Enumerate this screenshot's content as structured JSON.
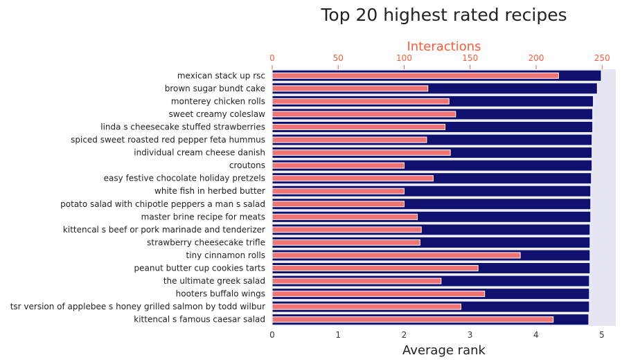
{
  "chart_data": {
    "type": "bar",
    "title": "Top 20 highest rated recipes",
    "xlabel": "Average rank",
    "x2label": "Interactions",
    "xlim": [
      0,
      5.25
    ],
    "x2lim": [
      0,
      262
    ],
    "xticks": [
      0,
      1,
      2,
      3,
      4,
      5
    ],
    "x2ticks": [
      0,
      50,
      100,
      150,
      200,
      250
    ],
    "categories": [
      "mexican stack up  rsc",
      "brown sugar bundt cake",
      "monterey chicken rolls",
      "sweet  creamy coleslaw",
      "linda s cheesecake stuffed strawberries",
      "spiced sweet roasted red pepper   feta hummus",
      "individual cream cheese danish",
      "croutons",
      "easy  festive chocolate holiday pretzels",
      "white fish in herbed butter",
      "potato salad with chipotle peppers a man s salad",
      "master brine recipe for meats",
      "kittencal s beef or pork marinade and tenderizer",
      "strawberry cheesecake trifle",
      "tiny cinnamon rolls",
      "peanut butter cup cookies  tarts",
      "the ultimate greek salad",
      "hooters buffalo wings",
      "tsr version of applebee s honey grilled salmon by todd wilbur",
      "kittencal s famous caesar salad"
    ],
    "series": [
      {
        "axis": "bottom",
        "color": "#10106e",
        "values": [
          4.99,
          4.93,
          4.87,
          4.86,
          4.86,
          4.85,
          4.85,
          4.85,
          4.84,
          4.83,
          4.83,
          4.83,
          4.82,
          4.82,
          4.82,
          4.82,
          4.81,
          4.81,
          4.81,
          4.8
        ]
      },
      {
        "axis": "top",
        "color": "#f07474",
        "values": [
          217,
          118,
          134,
          139,
          131,
          117,
          135,
          100,
          122,
          100,
          100,
          110,
          113,
          112,
          188,
          156,
          128,
          161,
          143,
          213
        ]
      }
    ],
    "grid": false,
    "colors": {
      "plot_background": "#e6e6f2",
      "top_axis": "#ff5a36",
      "bar_edge": "#ffffff"
    }
  }
}
